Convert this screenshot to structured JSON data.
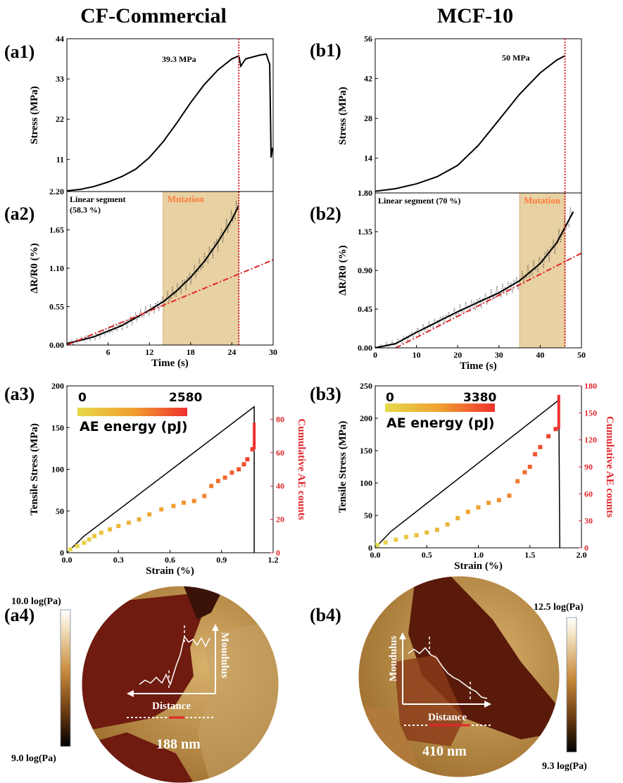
{
  "columns": {
    "a": "CF-Commercial",
    "b": "MCF-10"
  },
  "panels": {
    "a1": "(a1)",
    "a2": "(a2)",
    "a3": "(a3)",
    "a4": "(a4)",
    "b1": "(b1)",
    "b2": "(b2)",
    "b3": "(b3)",
    "b4": "(b4)"
  },
  "chart_data": [
    {
      "id": "a1",
      "type": "line",
      "ylabel": "Stress (MPa)",
      "xlim": [
        0,
        30
      ],
      "ylim": [
        2.2,
        44
      ],
      "yticks": [
        "2.20",
        "11",
        "22",
        "33",
        "44"
      ],
      "annotation": "39.3 MPa",
      "vline_x": 25,
      "vline_color": "#e0262b",
      "series": [
        {
          "x": [
            0,
            2,
            4,
            6,
            8,
            10,
            12,
            14,
            16,
            18,
            20,
            22,
            24,
            25,
            25.3,
            26,
            28,
            29,
            29.5,
            29.7,
            29.9,
            30
          ],
          "y": [
            2.4,
            2.8,
            3.6,
            4.8,
            6.3,
            8.3,
            11.5,
            15.8,
            21,
            26.5,
            31.5,
            35.5,
            38.5,
            39.3,
            36.5,
            38.5,
            39.5,
            39.8,
            37,
            11.5,
            14,
            14
          ]
        }
      ]
    },
    {
      "id": "a2",
      "type": "line",
      "xlabel": "Time (s)",
      "ylabel": "ΔR/R0 (%)",
      "xlim": [
        0,
        30
      ],
      "ylim": [
        0,
        2.2
      ],
      "xticks": [
        "6",
        "12",
        "18",
        "24",
        "30"
      ],
      "yticks": [
        "0.00",
        "0.55",
        "1.10",
        "1.65"
      ],
      "annotations": [
        "Linear segment",
        "(58.3 %)"
      ],
      "region_label": "Mutation",
      "region": [
        14,
        25
      ],
      "region_color": "#e8d1a2",
      "vline_x": 25,
      "vline_color": "#e0262b",
      "series": [
        {
          "style": "fit",
          "color": "#000000",
          "x": [
            0,
            4,
            8,
            12,
            14,
            16,
            18,
            20,
            22,
            24,
            25
          ],
          "y": [
            0.02,
            0.12,
            0.28,
            0.5,
            0.62,
            0.78,
            0.97,
            1.2,
            1.48,
            1.8,
            2.0
          ]
        },
        {
          "style": "linear",
          "color": "#e0262b",
          "x": [
            0,
            30
          ],
          "y": [
            0,
            1.22
          ]
        }
      ]
    },
    {
      "id": "a3",
      "type": "line+scatter",
      "xlabel": "Strain (%)",
      "ylabel": "Tensile Stress (MPa)",
      "y2label": "Cumulative AE counts",
      "xlim": [
        0,
        1.2
      ],
      "ylim": [
        0,
        200
      ],
      "y2lim": [
        0,
        100
      ],
      "xticks": [
        "0.0",
        "0.3",
        "0.6",
        "0.9",
        "1.2"
      ],
      "yticks": [
        "0",
        "50",
        "100",
        "150",
        "200"
      ],
      "y2ticks": [
        "0",
        "20",
        "40",
        "60",
        "80"
      ],
      "colorbar": {
        "min": "0",
        "max": "2580",
        "label": "AE energy (pJ)"
      },
      "stress": {
        "x": [
          0,
          0.1,
          1.09,
          1.09
        ],
        "y": [
          0,
          20,
          175,
          0
        ]
      },
      "ae_counts": {
        "x": [
          0.02,
          0.06,
          0.1,
          0.13,
          0.16,
          0.2,
          0.25,
          0.3,
          0.36,
          0.42,
          0.48,
          0.55,
          0.62,
          0.68,
          0.74,
          0.8,
          0.84,
          0.88,
          0.92,
          0.96,
          1.0,
          1.03,
          1.05,
          1.08,
          1.09
        ],
        "y": [
          2,
          4,
          6,
          8,
          10,
          12,
          14,
          16,
          18,
          20,
          23,
          26,
          28,
          30,
          31,
          34,
          40,
          43,
          45,
          48,
          50,
          53,
          56,
          62,
          78
        ]
      }
    },
    {
      "id": "b1",
      "type": "line",
      "ylabel": "Stress (MPa)",
      "xlim": [
        0,
        50
      ],
      "ylim": [
        1.8,
        56
      ],
      "yticks": [
        "1.80",
        "14",
        "28",
        "42",
        "56"
      ],
      "annotation": "50 MPa",
      "vline_x": 46,
      "vline_color": "#e0262b",
      "series": [
        {
          "x": [
            0,
            5,
            10,
            15,
            20,
            25,
            30,
            35,
            40,
            44,
            46
          ],
          "y": [
            2.4,
            3.3,
            5,
            7.5,
            11.5,
            18.5,
            27.5,
            36.5,
            44,
            48.5,
            50
          ]
        }
      ]
    },
    {
      "id": "b2",
      "type": "line",
      "xlabel": "Time (s)",
      "ylabel": "ΔR/R0 (%)",
      "xlim": [
        0,
        50
      ],
      "ylim": [
        0,
        1.8
      ],
      "xticks": [
        "0",
        "10",
        "20",
        "30",
        "40",
        "50"
      ],
      "yticks": [
        "0.00",
        "0.45",
        "0.90",
        "1.35"
      ],
      "annotations": [
        "Linear segment (70 %)"
      ],
      "region_label": "Mutation",
      "region": [
        35,
        46
      ],
      "region_color": "#e8d1a2",
      "vline_x": 46,
      "vline_color": "#e0262b",
      "series": [
        {
          "style": "fit",
          "color": "#000000",
          "x": [
            0,
            5,
            10,
            15,
            20,
            25,
            30,
            35,
            40,
            44,
            48
          ],
          "y": [
            0,
            0.05,
            0.18,
            0.3,
            0.42,
            0.53,
            0.64,
            0.78,
            0.98,
            1.22,
            1.58
          ]
        },
        {
          "style": "linear",
          "color": "#e0262b",
          "x": [
            5,
            50
          ],
          "y": [
            0,
            1.1
          ]
        }
      ]
    },
    {
      "id": "b3",
      "type": "line+scatter",
      "xlabel": "Strain (%)",
      "ylabel": "Tensile Stress (MPa)",
      "y2label": "Cumulative AE counts",
      "xlim": [
        0,
        2.0
      ],
      "ylim": [
        0,
        250
      ],
      "y2lim": [
        0,
        180
      ],
      "xticks": [
        "0.0",
        "0.5",
        "1.0",
        "1.5",
        "2.0"
      ],
      "yticks": [
        "0",
        "50",
        "100",
        "150",
        "200",
        "250"
      ],
      "y2ticks": [
        "0",
        "30",
        "60",
        "90",
        "120",
        "150",
        "180"
      ],
      "colorbar": {
        "min": "0",
        "max": "3380",
        "label": "AE energy (pJ)"
      },
      "stress": {
        "x": [
          0,
          0.15,
          1.78,
          1.79
        ],
        "y": [
          0,
          25,
          228,
          0
        ]
      },
      "ae_counts": {
        "x": [
          0.02,
          0.1,
          0.2,
          0.3,
          0.4,
          0.5,
          0.6,
          0.7,
          0.8,
          0.9,
          1.0,
          1.1,
          1.2,
          1.3,
          1.38,
          1.45,
          1.5,
          1.55,
          1.6,
          1.68,
          1.75,
          1.78
        ],
        "y": [
          3,
          6,
          9,
          12,
          14,
          17,
          20,
          26,
          33,
          40,
          45,
          50,
          53,
          58,
          74,
          84,
          90,
          104,
          112,
          124,
          132,
          170
        ]
      }
    }
  ],
  "afm": {
    "a": {
      "cb_max": "10.0",
      "cb_min": "9.0",
      "cb_unit": "log(Pa)",
      "axis_y": "Moudulus",
      "axis_x": "Distance",
      "scale": "188 nm"
    },
    "b": {
      "cb_max": "12.5",
      "cb_min": "9.3",
      "cb_unit": "log(Pa)",
      "axis_y": "Moudulus",
      "axis_x": "Distance",
      "scale": "410 nm"
    }
  }
}
